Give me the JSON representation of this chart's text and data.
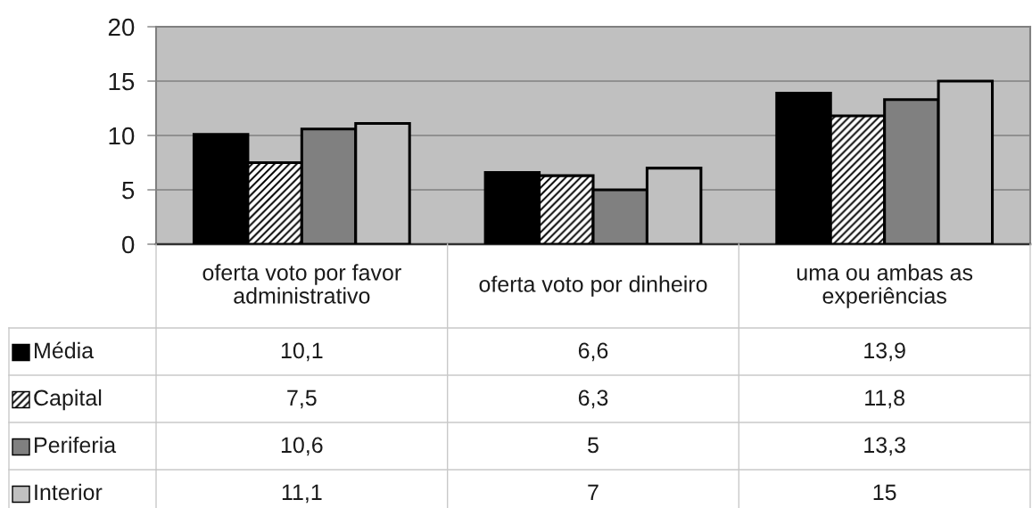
{
  "chart_data": {
    "type": "bar",
    "categories": [
      "oferta voto por favor administrativo",
      "oferta voto por dinheiro",
      "uma ou ambas as experiências"
    ],
    "series": [
      {
        "name": "Média",
        "color": "#000000",
        "values": [
          10.1,
          6.6,
          13.9
        ],
        "value_labels": [
          "10,1",
          "6,6",
          "13,9"
        ]
      },
      {
        "name": "Capital",
        "color": "#ffffff",
        "values": [
          7.5,
          6.3,
          11.8
        ],
        "value_labels": [
          "7,5",
          "6,3",
          "11,8"
        ]
      },
      {
        "name": "Periferia",
        "color": "#808080",
        "values": [
          10.6,
          5,
          13.3
        ],
        "value_labels": [
          "10,6",
          "5",
          "13,3"
        ]
      },
      {
        "name": "Interior",
        "color": "#c0c0c0",
        "values": [
          11.1,
          7,
          15
        ],
        "value_labels": [
          "11,1",
          "7",
          "15"
        ]
      }
    ],
    "ylim": [
      0,
      20
    ],
    "yticks": [
      0,
      5,
      10,
      15,
      20
    ],
    "grid": "y",
    "legend": "bottom left"
  }
}
